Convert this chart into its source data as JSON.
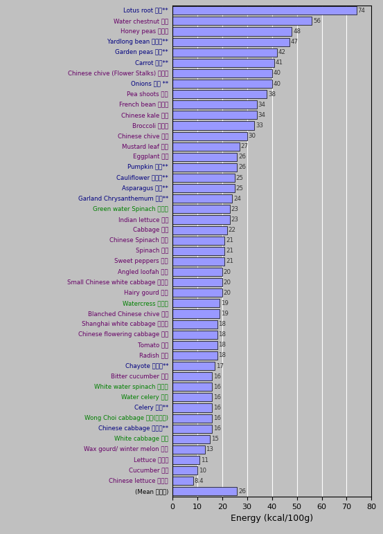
{
  "xlabel": "Energy (kcal/100g)",
  "categories": [
    "(Mean 平均値)",
    "Chinese lettuce 唐生菜",
    "Cucumber 青瓜",
    "Lettuce 西生菜",
    "Wax gourd/ winter melon 冬瓜",
    "White cabbage 白菜",
    "Chinese cabbage 黄芽白**",
    "Wong Choi cabbage 王菜(娃娃菜)",
    "Celery 西芜**",
    "Water celery 水芜",
    "White water spinach 白通菜",
    "Bitter cucumber 苦瓜",
    "Chayote 佛手瓜**",
    "Radish 蔦蔦",
    "Tomato 番茄",
    "Chinese flowering cabbage 菜心",
    "Shanghai white cabbage 小唐菜",
    "Blanched Chinese chive 韭黄",
    "Watercress 西洋菜",
    "Hairy gourd 節瓜",
    "Small Chinese white cabbage 小白菜",
    "Angled loofah 絲瓜",
    "Sweet peppers 西椒",
    "Spinach 菠菜",
    "Chinese Spinach 莶菜",
    "Cabbage 邪菜",
    "Indian lettuce 麥菜",
    "Green water Spinach 青通菜",
    "Garland Chrysanthemum 菄蒋**",
    "Asparagus 聆笍**",
    "Cauliflower 邪菜花**",
    "Pumpkin 南瓜**",
    "Eggplant 茄子",
    "Mustard leaf 芜菜",
    "Chinese chive 韭菜",
    "Broccoli 西蘭花",
    "Chinese kale 芜蘭",
    "French bean 四季豆",
    "Pea shoots 豆苗",
    "Onions 洋腥 **",
    "Chinese chive (Flower Stalks) 韭菜花",
    "Carrot 甘笍**",
    "Garden peas 砼豆**",
    "Yardlong bean 青豆角**",
    "Honey peas 蜜糖豆",
    "Water chestnut 馬蹄",
    "Lotus root 蓮處**"
  ],
  "values": [
    26,
    8.4,
    10,
    11,
    13,
    15,
    16,
    16,
    16,
    16,
    16,
    16,
    17,
    18,
    18,
    18,
    18,
    19,
    19,
    20,
    20,
    20,
    21,
    21,
    21,
    22,
    23,
    23,
    24,
    25,
    25,
    26,
    26,
    27,
    30,
    33,
    34,
    34,
    38,
    40,
    40,
    41,
    42,
    47,
    48,
    56,
    74
  ],
  "label_colors": {
    "Lotus root 蓮處**": "#000080",
    "Water chestnut 馬蹄": "#660066",
    "Honey peas 蜜糖豆": "#660066",
    "Yardlong bean 青豆角**": "#000080",
    "Garden peas 砼豆**": "#000080",
    "Carrot 甘笍**": "#000080",
    "Chinese chive (Flower Stalks) 韭菜花": "#660066",
    "Onions 洋腥 **": "#000080",
    "Pea shoots 豆苗": "#660066",
    "French bean 四季豆": "#660066",
    "Chinese kale 芜蘭": "#660066",
    "Broccoli 西蘭花": "#660066",
    "Chinese chive 韭菜": "#660066",
    "Mustard leaf 芜菜": "#660066",
    "Eggplant 茄子": "#660066",
    "Pumpkin 南瓜**": "#000080",
    "Cauliflower 邪菜花**": "#000080",
    "Asparagus 聆笍**": "#000080",
    "Garland Chrysanthemum 菄蒋**": "#000080",
    "Green water Spinach 青通菜": "#008000",
    "Indian lettuce 麥菜": "#660066",
    "Cabbage 邪菜": "#660066",
    "Chinese Spinach 莶菜": "#660066",
    "Spinach 菠菜": "#660066",
    "Sweet peppers 西椒": "#660066",
    "Angled loofah 絲瓜": "#660066",
    "Small Chinese white cabbage 小白菜": "#660066",
    "Hairy gourd 節瓜": "#660066",
    "Watercress 西洋菜": "#008000",
    "Blanched Chinese chive 韭黄": "#660066",
    "Shanghai white cabbage 小唐菜": "#660066",
    "Chinese flowering cabbage 菜心": "#660066",
    "Tomato 番茄": "#660066",
    "Radish 蔦蔦": "#660066",
    "Chayote 佛手瓜**": "#000080",
    "Bitter cucumber 苦瓜": "#660066",
    "White water spinach 白通菜": "#008000",
    "Water celery 水芜": "#008000",
    "Celery 西芜**": "#000080",
    "Wong Choi cabbage 王菜(娃娃菜)": "#008000",
    "Chinese cabbage 黄芽白**": "#000080",
    "White cabbage 白菜": "#008000",
    "Wax gourd/ winter melon 冬瓜": "#660066",
    "Lettuce 西生菜": "#660066",
    "Cucumber 青瓜": "#660066",
    "Chinese lettuce 唐生菜": "#660066",
    "(Mean 平均値)": "#000000"
  },
  "bar_color": "#9999ff",
  "bar_edge_color": "#000000",
  "bg_color": "#c0c0c0",
  "plot_bg_color": "#c0c0c0",
  "label_color_default": "#660066",
  "xlim": [
    0,
    80
  ],
  "xticks": [
    0,
    10,
    20,
    30,
    40,
    50,
    60,
    70,
    80
  ],
  "figsize": [
    5.53,
    7.72
  ],
  "dpi": 100
}
